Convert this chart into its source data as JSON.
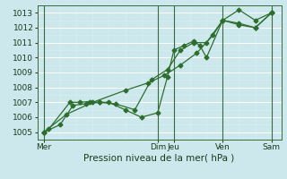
{
  "xlabel": "Pression niveau de la mer( hPa )",
  "bg_color": "#cce8ec",
  "grid_color_major": "#ffffff",
  "grid_color_minor": "#ddf0f2",
  "line_color": "#2d6e2d",
  "ylim": [
    1004.5,
    1013.5
  ],
  "yticks": [
    1005,
    1006,
    1007,
    1008,
    1009,
    1010,
    1011,
    1012,
    1013
  ],
  "day_labels": [
    "Mer",
    "Dim",
    "Jeu",
    "Ven",
    "Sam"
  ],
  "day_positions": [
    0,
    3.5,
    4.0,
    5.5,
    7.0
  ],
  "vline_positions": [
    0.0,
    3.5,
    4.0,
    5.5,
    7.0
  ],
  "xlim": [
    -0.2,
    7.3
  ],
  "series1_x": [
    0.0,
    0.15,
    0.8,
    1.1,
    1.4,
    1.7,
    2.0,
    2.5,
    3.0,
    3.5,
    3.8,
    4.0,
    4.3,
    4.6,
    4.8,
    5.0,
    5.5,
    6.0,
    6.5,
    7.0
  ],
  "series1_y": [
    1005.0,
    1005.2,
    1007.0,
    1007.0,
    1007.05,
    1007.0,
    1007.0,
    1006.5,
    1006.0,
    1006.3,
    1008.7,
    1010.5,
    1010.8,
    1011.1,
    1010.8,
    1010.0,
    1012.5,
    1012.3,
    1012.0,
    1013.0
  ],
  "series2_x": [
    0.0,
    0.5,
    0.9,
    1.3,
    1.7,
    2.2,
    2.8,
    3.3,
    3.8,
    4.2,
    4.6,
    5.0,
    5.5,
    6.0,
    6.5,
    7.0
  ],
  "series2_y": [
    1005.0,
    1005.5,
    1006.8,
    1006.9,
    1007.0,
    1006.9,
    1006.5,
    1008.5,
    1009.2,
    1010.5,
    1011.0,
    1011.0,
    1012.5,
    1012.2,
    1012.0,
    1013.0
  ],
  "series3_x": [
    0.0,
    0.7,
    1.5,
    2.5,
    3.2,
    3.7,
    4.2,
    4.7,
    5.2,
    5.5,
    6.0,
    6.5,
    7.0
  ],
  "series3_y": [
    1005.0,
    1006.2,
    1007.0,
    1007.8,
    1008.3,
    1008.8,
    1009.5,
    1010.3,
    1011.5,
    1012.5,
    1013.2,
    1012.5,
    1013.0
  ],
  "xlabel_fontsize": 7.5,
  "tick_fontsize": 6.5,
  "marker": "D",
  "markersize": 2.5,
  "linewidth": 0.9
}
